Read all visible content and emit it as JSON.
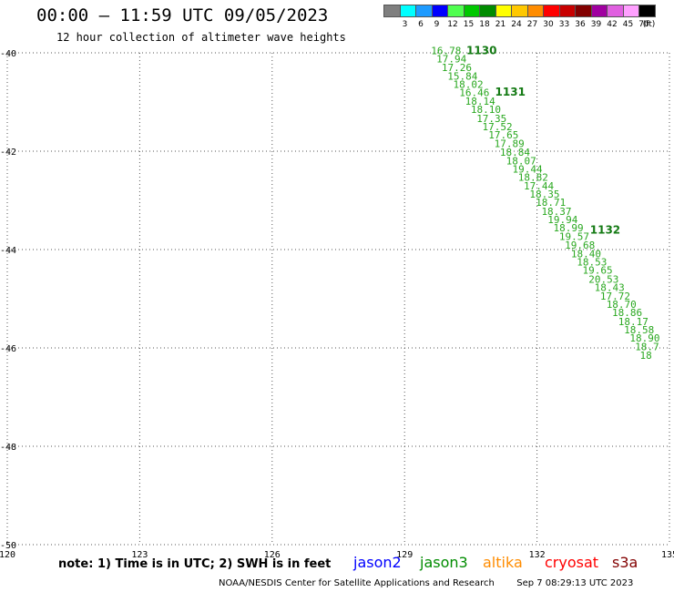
{
  "header": {
    "title": "00:00 – 11:59 UTC 09/05/2023",
    "subtitle": "12 hour collection of altimeter wave heights"
  },
  "colorbar": {
    "unit": "(ft)",
    "bins": [
      {
        "label": "3",
        "color": "#7f7f7f"
      },
      {
        "label": "6",
        "color": "#00ffff"
      },
      {
        "label": "9",
        "color": "#1e9bff"
      },
      {
        "label": "12",
        "color": "#0000ff"
      },
      {
        "label": "15",
        "color": "#50ff50"
      },
      {
        "label": "18",
        "color": "#00c800"
      },
      {
        "label": "21",
        "color": "#008c00"
      },
      {
        "label": "24",
        "color": "#ffff00"
      },
      {
        "label": "27",
        "color": "#ffc800"
      },
      {
        "label": "30",
        "color": "#ff8c00"
      },
      {
        "label": "33",
        "color": "#ff0000"
      },
      {
        "label": "36",
        "color": "#c80000"
      },
      {
        "label": "39",
        "color": "#820000"
      },
      {
        "label": "42",
        "color": "#a000a0"
      },
      {
        "label": "45",
        "color": "#e060e0"
      },
      {
        "label": "70",
        "color": "#ffa0ff"
      },
      {
        "label": "",
        "color": "#000000"
      }
    ]
  },
  "map": {
    "lon_range": [
      120,
      135
    ],
    "lat_range": [
      -50,
      -40
    ],
    "lon_ticks": [
      120,
      123,
      126,
      129,
      132,
      135
    ],
    "lat_ticks": [
      -40,
      -42,
      -44,
      -46,
      -48,
      -50
    ],
    "lon_tick_labels": [
      "120",
      "123",
      "126",
      "129",
      "132",
      "135"
    ],
    "lat_tick_labels": [
      "-40",
      "-42",
      "-44",
      "-46",
      "-48",
      "-50"
    ],
    "passes": [
      {
        "label": "1130",
        "lon": 130.4,
        "lat": -39.95
      },
      {
        "label": "1131",
        "lon": 131.05,
        "lat": -40.8
      },
      {
        "label": "1132",
        "lon": 133.2,
        "lat": -43.6
      }
    ],
    "wave_color": "#2aa820",
    "pass_color": "#147a14",
    "swh": [
      {
        "v": "16.78",
        "lon": 129.6,
        "lat": -39.95
      },
      {
        "v": "17.94",
        "lon": 129.72,
        "lat": -40.12
      },
      {
        "v": "17.26",
        "lon": 129.84,
        "lat": -40.3
      },
      {
        "v": "15.84",
        "lon": 129.97,
        "lat": -40.47
      },
      {
        "v": "18.02",
        "lon": 130.1,
        "lat": -40.64
      },
      {
        "v": "16.46",
        "lon": 130.24,
        "lat": -40.81
      },
      {
        "v": "18.14",
        "lon": 130.37,
        "lat": -40.98
      },
      {
        "v": "18.10",
        "lon": 130.5,
        "lat": -41.15
      },
      {
        "v": "17.35",
        "lon": 130.63,
        "lat": -41.33
      },
      {
        "v": "17.52",
        "lon": 130.76,
        "lat": -41.5
      },
      {
        "v": "17.65",
        "lon": 130.9,
        "lat": -41.67
      },
      {
        "v": "17.89",
        "lon": 131.03,
        "lat": -41.84
      },
      {
        "v": "18.84",
        "lon": 131.16,
        "lat": -42.02
      },
      {
        "v": "18.07",
        "lon": 131.3,
        "lat": -42.19
      },
      {
        "v": "19.44",
        "lon": 131.44,
        "lat": -42.36
      },
      {
        "v": "18.82",
        "lon": 131.57,
        "lat": -42.53
      },
      {
        "v": "17.44",
        "lon": 131.7,
        "lat": -42.7
      },
      {
        "v": "18.35",
        "lon": 131.83,
        "lat": -42.87
      },
      {
        "v": "18.71",
        "lon": 131.97,
        "lat": -43.04
      },
      {
        "v": "18.37",
        "lon": 132.1,
        "lat": -43.22
      },
      {
        "v": "19.94",
        "lon": 132.24,
        "lat": -43.39
      },
      {
        "v": "18.99",
        "lon": 132.37,
        "lat": -43.56
      },
      {
        "v": "19.57",
        "lon": 132.5,
        "lat": -43.73
      },
      {
        "v": "19.68",
        "lon": 132.63,
        "lat": -43.91
      },
      {
        "v": "18.40",
        "lon": 132.77,
        "lat": -44.08
      },
      {
        "v": "18.53",
        "lon": 132.9,
        "lat": -44.25
      },
      {
        "v": "19.65",
        "lon": 133.03,
        "lat": -44.42
      },
      {
        "v": "20.53",
        "lon": 133.17,
        "lat": -44.6
      },
      {
        "v": "18.43",
        "lon": 133.3,
        "lat": -44.77
      },
      {
        "v": "17.72",
        "lon": 133.43,
        "lat": -44.94
      },
      {
        "v": "18.70",
        "lon": 133.57,
        "lat": -45.11
      },
      {
        "v": "18.86",
        "lon": 133.7,
        "lat": -45.28
      },
      {
        "v": "18.17",
        "lon": 133.84,
        "lat": -45.46
      },
      {
        "v": "18.58",
        "lon": 133.97,
        "lat": -45.63
      },
      {
        "v": "18.90",
        "lon": 134.1,
        "lat": -45.8
      },
      {
        "v": "18.7",
        "lon": 134.22,
        "lat": -45.97
      },
      {
        "v": "18",
        "lon": 134.33,
        "lat": -46.15
      }
    ]
  },
  "note": "note: 1) Time is in UTC; 2) SWH is in feet",
  "satellites": [
    {
      "name": "jason2",
      "color": "#0000ff"
    },
    {
      "name": "jason3",
      "color": "#008c00"
    },
    {
      "name": "altika",
      "color": "#ff8c00"
    },
    {
      "name": "cryosat",
      "color": "#ff0000"
    },
    {
      "name": "s3a",
      "color": "#820000"
    }
  ],
  "footer": {
    "credit": "NOAA/NESDIS Center for Satellite Applications and Research",
    "timestamp": "Sep  7 08:29:13 UTC 2023"
  }
}
